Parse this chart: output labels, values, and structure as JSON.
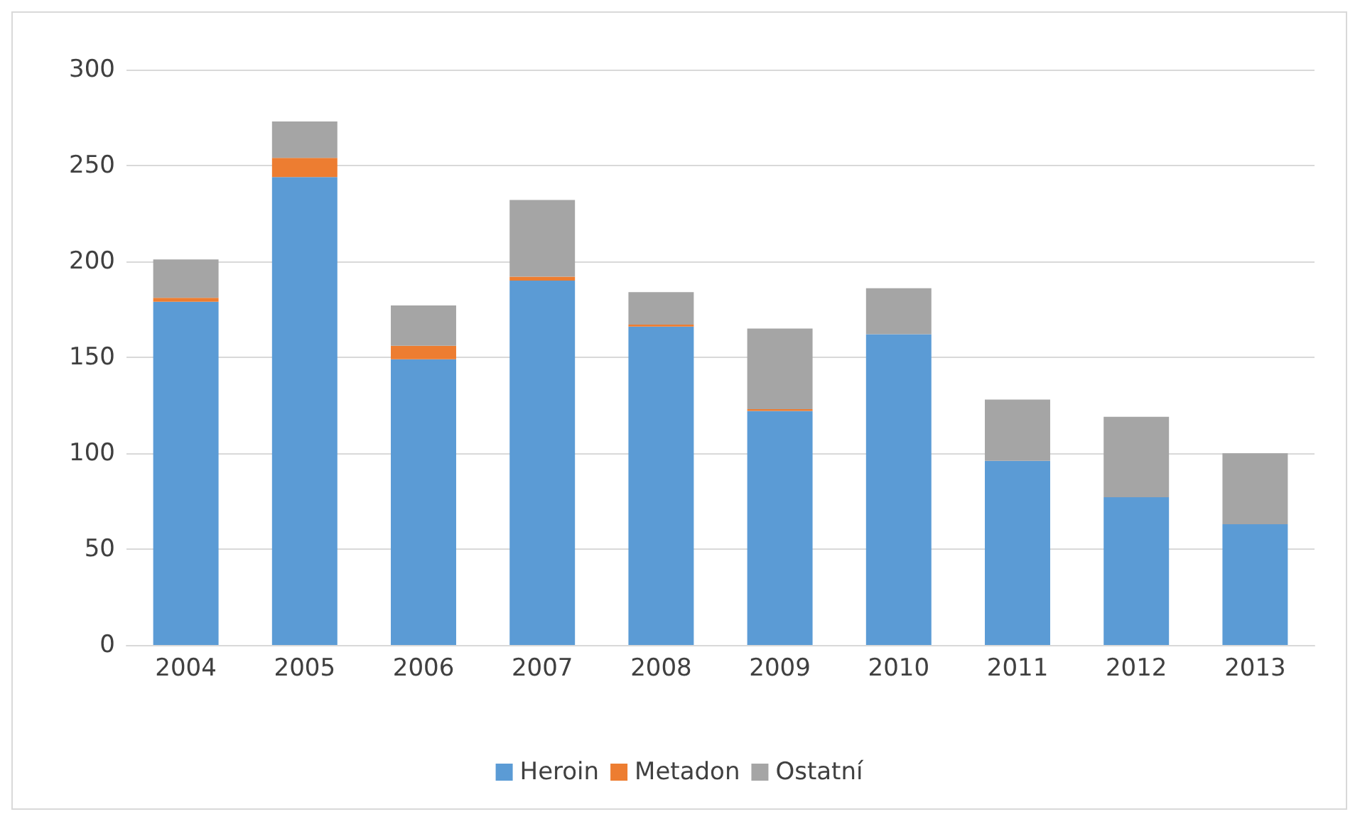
{
  "chart_data": {
    "type": "bar",
    "stacked": true,
    "categories": [
      "2004",
      "2005",
      "2006",
      "2007",
      "2008",
      "2009",
      "2010",
      "2011",
      "2012",
      "2013"
    ],
    "series": [
      {
        "name": "Heroin",
        "color": "#5b9bd5",
        "values": [
          179,
          244,
          149,
          190,
          166,
          122,
          162,
          96,
          77,
          63
        ]
      },
      {
        "name": "Metadon",
        "color": "#ed7d31",
        "values": [
          2,
          10,
          7,
          2,
          1,
          1,
          0,
          0,
          0,
          0
        ]
      },
      {
        "name": "Ostatní",
        "color": "#a5a5a5",
        "values": [
          20,
          19,
          21,
          40,
          17,
          42,
          24,
          32,
          42,
          37
        ]
      }
    ],
    "ylim": [
      0,
      300
    ],
    "yticks": [
      0,
      50,
      100,
      150,
      200,
      250,
      300
    ],
    "grid": "y",
    "legend": "bottom"
  }
}
